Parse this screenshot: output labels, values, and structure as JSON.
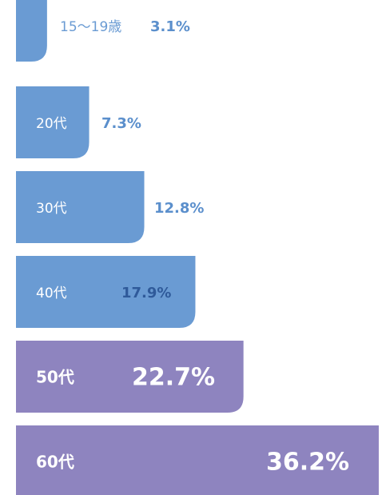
{
  "chart_data": {
    "type": "bar",
    "orientation": "horizontal",
    "categories": [
      "15〜19歳",
      "20代",
      "30代",
      "40代",
      "50代",
      "60代"
    ],
    "values": [
      3.1,
      7.3,
      12.8,
      17.9,
      22.7,
      36.2
    ],
    "value_labels": [
      "3.1%",
      "7.3%",
      "12.8%",
      "17.9%",
      "22.7%",
      "36.2%"
    ],
    "colors": [
      "#6a9bd3",
      "#6a9bd3",
      "#6a9bd3",
      "#6a9bd3",
      "#8e84bf",
      "#8e84bf"
    ]
  }
}
